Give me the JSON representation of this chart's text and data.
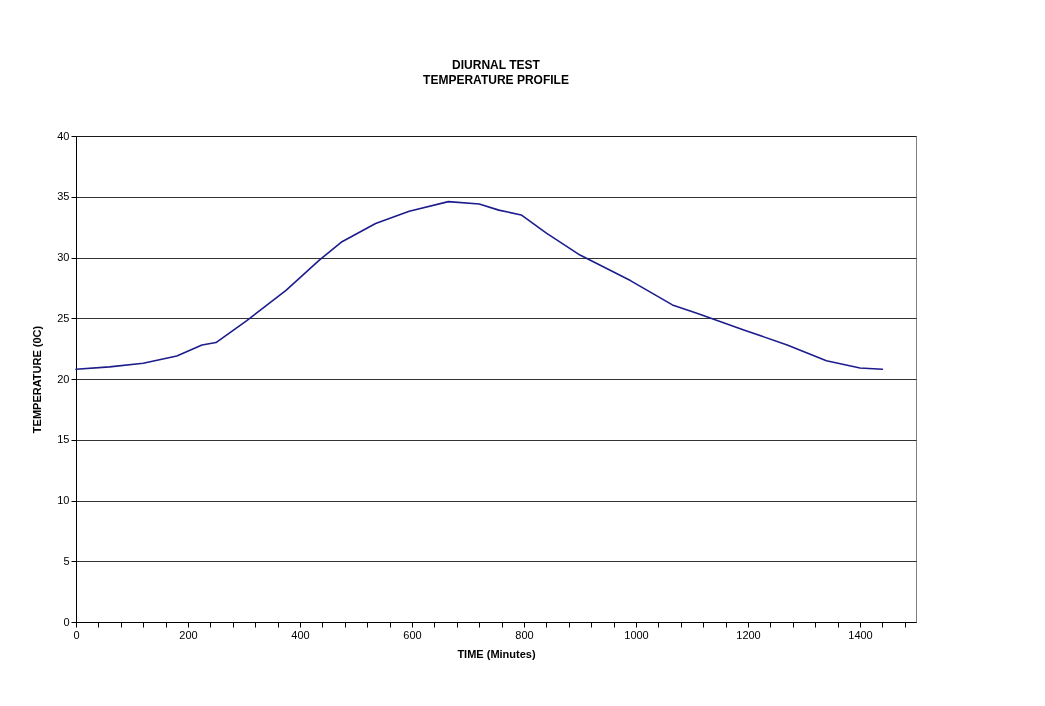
{
  "chart_data": {
    "type": "line",
    "title": "DIURNAL TEST",
    "subtitle": "TEMPERATURE PROFILE",
    "xlabel": "TIME (Minutes)",
    "ylabel": "TEMPERATURE (0C)",
    "x": [
      0,
      60,
      120,
      180,
      225,
      250,
      305,
      375,
      435,
      475,
      535,
      595,
      665,
      720,
      755,
      795,
      840,
      900,
      990,
      1065,
      1110,
      1195,
      1270,
      1340,
      1400,
      1440
    ],
    "series": [
      {
        "color": "#1c1c8c",
        "values": [
          20.8,
          21.0,
          21.3,
          21.9,
          22.8,
          23.0,
          24.8,
          27.3,
          29.8,
          31.3,
          32.8,
          33.8,
          34.6,
          34.4,
          33.9,
          33.5,
          32.0,
          30.2,
          28.1,
          26.1,
          25.4,
          24.0,
          22.8,
          21.5,
          20.9,
          20.8
        ]
      }
    ],
    "xlim": [
      0,
      1500
    ],
    "xticks": [
      0,
      {
        "value": 40,
        "label": null
      },
      {
        "value": 80,
        "label": null
      },
      {
        "value": 120,
        "label": null
      },
      {
        "value": 160,
        "label": null
      },
      200,
      {
        "value": 240,
        "label": null
      },
      {
        "value": 280,
        "label": null
      },
      {
        "value": 320,
        "label": null
      },
      {
        "value": 360,
        "label": null
      },
      400,
      {
        "value": 440,
        "label": null
      },
      {
        "value": 480,
        "label": null
      },
      {
        "value": 520,
        "label": null
      },
      {
        "value": 560,
        "label": null
      },
      600,
      {
        "value": 640,
        "label": null
      },
      {
        "value": 680,
        "label": null
      },
      {
        "value": 720,
        "label": null
      },
      {
        "value": 760,
        "label": null
      },
      800,
      {
        "value": 840,
        "label": null
      },
      {
        "value": 880,
        "label": null
      },
      {
        "value": 920,
        "label": null
      },
      {
        "value": 960,
        "label": null
      },
      1000,
      {
        "value": 1040,
        "label": null
      },
      {
        "value": 1080,
        "label": null
      },
      {
        "value": 1120,
        "label": null
      },
      {
        "value": 1160,
        "label": null
      },
      1200,
      {
        "value": 1240,
        "label": null
      },
      {
        "value": 1280,
        "label": null
      },
      {
        "value": 1320,
        "label": null
      },
      {
        "value": 1360,
        "label": null
      },
      1400,
      {
        "value": 1440,
        "label": null
      },
      {
        "value": 1480,
        "label": null
      }
    ],
    "ylim": [
      0,
      40
    ],
    "yticks": [
      0,
      5,
      10,
      15,
      20,
      25,
      30,
      35,
      40
    ],
    "grid": "y",
    "marker": "none",
    "line_style": "solid"
  }
}
